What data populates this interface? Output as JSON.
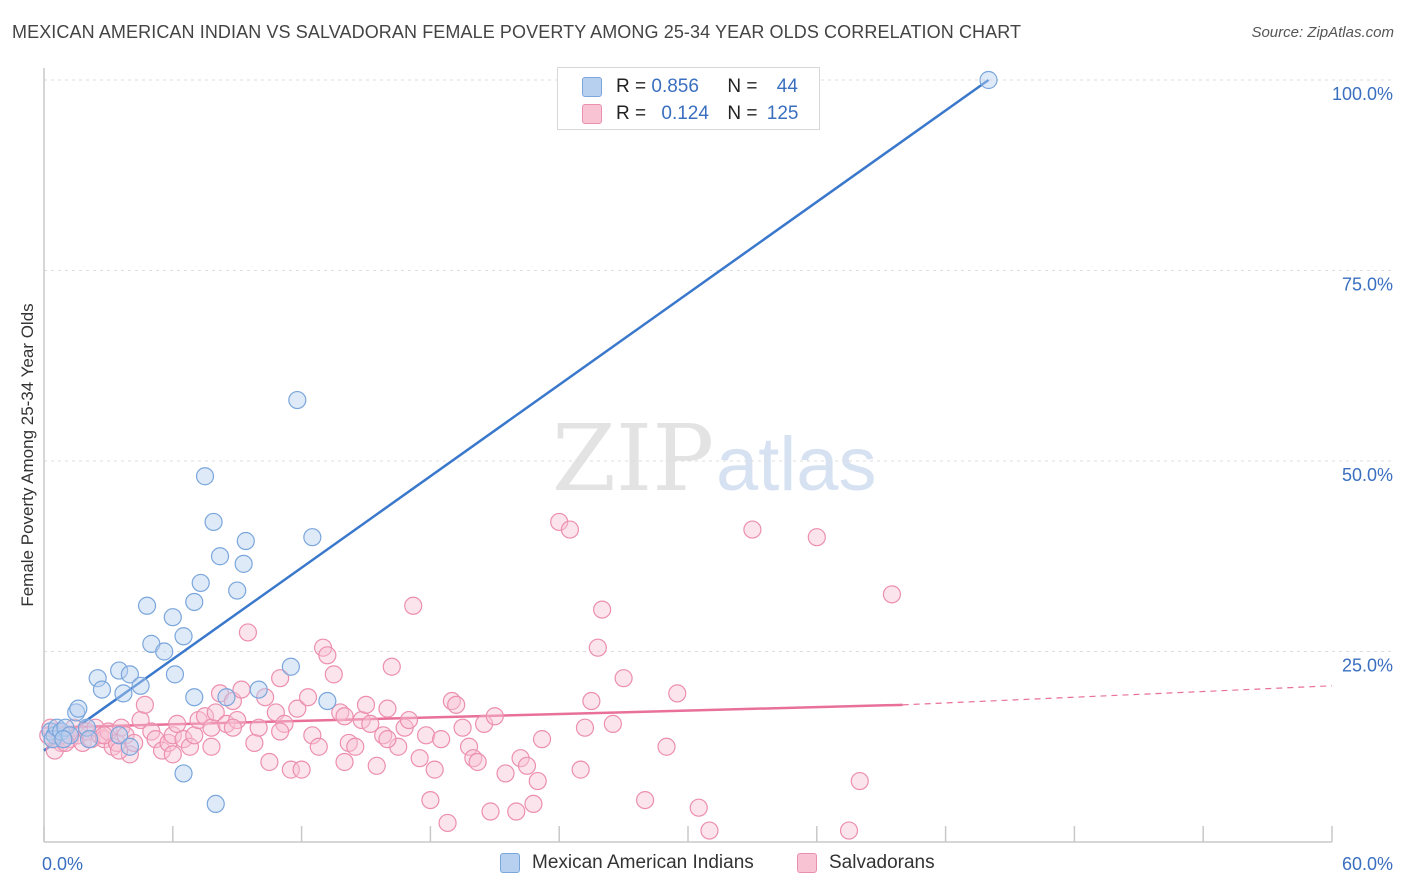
{
  "title": "MEXICAN AMERICAN INDIAN VS SALVADORAN FEMALE POVERTY AMONG 25-34 YEAR OLDS CORRELATION CHART",
  "source": "Source: ZipAtlas.com",
  "watermark": {
    "zip": "ZIP",
    "atlas": "atlas"
  },
  "legend": {
    "rows": [
      {
        "r_label": "R = ",
        "r_value": "0.856",
        "n_label": "N = ",
        "n_value": "44"
      },
      {
        "r_label": "R = ",
        "r_value": "0.124",
        "n_label": "N = ",
        "n_value": "125"
      }
    ]
  },
  "colors": {
    "blue_fill": "#b8d0f0",
    "blue_stroke": "#7aa6dc",
    "blue_line": "#3a78cc",
    "pink_fill": "#f8c4d4",
    "pink_stroke": "#ec8fae",
    "pink_line": "#e8709a",
    "tick_label": "#3a6fc0",
    "grid": "#dddddd"
  },
  "chart_data": {
    "type": "scatter",
    "title": "MEXICAN AMERICAN INDIAN VS SALVADORAN FEMALE POVERTY AMONG 25-34 YEAR OLDS CORRELATION CHART",
    "xlabel": "",
    "ylabel": "Female Poverty Among 25-34 Year Olds",
    "xlim": [
      0,
      60
    ],
    "ylim": [
      0,
      100
    ],
    "x_tick_labels": [
      "0.0%",
      "60.0%"
    ],
    "y_ticks": [
      25,
      50,
      75,
      100
    ],
    "y_tick_labels": [
      "25.0%",
      "50.0%",
      "75.0%",
      "100.0%"
    ],
    "grid": true,
    "legend_position": "top-center",
    "series": [
      {
        "name": "Mexican American Indians",
        "color": "#7aa6dc",
        "r": 0.856,
        "n": 44,
        "trend": {
          "x": [
            0,
            44.0
          ],
          "y": [
            12.0,
            100.0
          ]
        },
        "points": [
          [
            0.3,
            14.5
          ],
          [
            0.5,
            14.0
          ],
          [
            0.4,
            13.5
          ],
          [
            0.6,
            15.0
          ],
          [
            0.8,
            14.5
          ],
          [
            1.0,
            15.0
          ],
          [
            1.2,
            14.0
          ],
          [
            0.9,
            13.5
          ],
          [
            1.5,
            17.0
          ],
          [
            1.6,
            17.5
          ],
          [
            2.0,
            15.0
          ],
          [
            2.1,
            13.5
          ],
          [
            2.5,
            21.5
          ],
          [
            2.7,
            20.0
          ],
          [
            3.5,
            22.5
          ],
          [
            3.7,
            19.5
          ],
          [
            4.0,
            22.0
          ],
          [
            4.5,
            20.5
          ],
          [
            3.5,
            14.0
          ],
          [
            4.0,
            12.5
          ],
          [
            4.8,
            31.0
          ],
          [
            5.0,
            26.0
          ],
          [
            5.6,
            25.0
          ],
          [
            6.0,
            29.5
          ],
          [
            6.1,
            22.0
          ],
          [
            6.5,
            27.0
          ],
          [
            7.0,
            31.5
          ],
          [
            7.3,
            34.0
          ],
          [
            7.5,
            48.0
          ],
          [
            7.9,
            42.0
          ],
          [
            8.2,
            37.5
          ],
          [
            8.5,
            19.0
          ],
          [
            9.0,
            33.0
          ],
          [
            9.3,
            36.5
          ],
          [
            9.4,
            39.5
          ],
          [
            10.0,
            20.0
          ],
          [
            11.5,
            23.0
          ],
          [
            11.8,
            58.0
          ],
          [
            12.5,
            40.0
          ],
          [
            13.2,
            18.5
          ],
          [
            6.5,
            9.0
          ],
          [
            7.0,
            19.0
          ],
          [
            8.0,
            5.0
          ],
          [
            44.0,
            100.0
          ]
        ]
      },
      {
        "name": "Salvadorans",
        "color": "#ec8fae",
        "r": 0.124,
        "n": 125,
        "trend": {
          "x": [
            0,
            40.0
          ],
          "y": [
            15.0,
            18.0
          ]
        },
        "trend_dashed": {
          "x": [
            40.0,
            60.0
          ],
          "y": [
            18.0,
            20.5
          ]
        },
        "points": [
          [
            0.2,
            14.0
          ],
          [
            0.4,
            13.5
          ],
          [
            0.6,
            14.5
          ],
          [
            0.8,
            13.0
          ],
          [
            1.0,
            14.0
          ],
          [
            1.2,
            13.5
          ],
          [
            1.4,
            15.0
          ],
          [
            1.6,
            14.0
          ],
          [
            1.8,
            13.0
          ],
          [
            2.0,
            14.5
          ],
          [
            2.2,
            13.5
          ],
          [
            2.4,
            15.0
          ],
          [
            2.6,
            14.0
          ],
          [
            2.8,
            13.5
          ],
          [
            3.0,
            14.5
          ],
          [
            3.2,
            12.5
          ],
          [
            3.4,
            13.0
          ],
          [
            3.6,
            15.0
          ],
          [
            3.8,
            14.0
          ],
          [
            4.0,
            11.5
          ],
          [
            4.2,
            13.0
          ],
          [
            4.5,
            16.0
          ],
          [
            4.7,
            18.0
          ],
          [
            5.0,
            14.5
          ],
          [
            5.2,
            13.5
          ],
          [
            5.5,
            12.0
          ],
          [
            5.8,
            13.0
          ],
          [
            6.0,
            14.0
          ],
          [
            6.2,
            15.5
          ],
          [
            6.5,
            13.5
          ],
          [
            6.8,
            12.5
          ],
          [
            7.0,
            14.0
          ],
          [
            7.2,
            16.0
          ],
          [
            7.5,
            16.5
          ],
          [
            7.8,
            15.0
          ],
          [
            8.0,
            17.0
          ],
          [
            8.2,
            19.5
          ],
          [
            8.5,
            15.5
          ],
          [
            8.8,
            18.5
          ],
          [
            9.0,
            16.0
          ],
          [
            9.2,
            20.0
          ],
          [
            9.5,
            27.5
          ],
          [
            9.8,
            13.0
          ],
          [
            10.0,
            15.0
          ],
          [
            10.3,
            19.0
          ],
          [
            10.5,
            10.5
          ],
          [
            10.8,
            17.0
          ],
          [
            11.0,
            21.5
          ],
          [
            11.2,
            15.5
          ],
          [
            11.5,
            9.5
          ],
          [
            11.8,
            17.5
          ],
          [
            12.0,
            9.5
          ],
          [
            12.3,
            19.0
          ],
          [
            12.5,
            14.0
          ],
          [
            12.8,
            12.5
          ],
          [
            13.0,
            25.5
          ],
          [
            13.2,
            24.5
          ],
          [
            13.5,
            22.0
          ],
          [
            13.8,
            17.0
          ],
          [
            14.0,
            10.5
          ],
          [
            14.2,
            13.0
          ],
          [
            14.5,
            12.5
          ],
          [
            14.8,
            16.0
          ],
          [
            15.0,
            18.0
          ],
          [
            15.2,
            15.5
          ],
          [
            15.5,
            10.0
          ],
          [
            15.8,
            14.0
          ],
          [
            16.0,
            17.5
          ],
          [
            16.2,
            23.0
          ],
          [
            16.5,
            12.5
          ],
          [
            16.8,
            15.0
          ],
          [
            17.0,
            16.0
          ],
          [
            17.2,
            31.0
          ],
          [
            17.5,
            11.0
          ],
          [
            17.8,
            14.0
          ],
          [
            18.0,
            5.5
          ],
          [
            18.2,
            9.5
          ],
          [
            18.5,
            13.5
          ],
          [
            18.8,
            2.5
          ],
          [
            19.0,
            18.5
          ],
          [
            19.2,
            18.0
          ],
          [
            19.5,
            15.0
          ],
          [
            19.8,
            12.5
          ],
          [
            20.0,
            11.0
          ],
          [
            20.2,
            10.5
          ],
          [
            20.5,
            15.5
          ],
          [
            20.8,
            4.0
          ],
          [
            21.0,
            16.5
          ],
          [
            21.5,
            9.0
          ],
          [
            22.0,
            4.0
          ],
          [
            22.2,
            11.0
          ],
          [
            22.5,
            10.0
          ],
          [
            22.8,
            5.0
          ],
          [
            23.0,
            8.0
          ],
          [
            23.2,
            13.5
          ],
          [
            24.0,
            42.0
          ],
          [
            24.5,
            41.0
          ],
          [
            25.0,
            9.5
          ],
          [
            25.2,
            15.0
          ],
          [
            25.5,
            18.5
          ],
          [
            25.8,
            25.5
          ],
          [
            26.0,
            30.5
          ],
          [
            26.5,
            15.5
          ],
          [
            27.0,
            21.5
          ],
          [
            28.0,
            5.5
          ],
          [
            29.0,
            12.5
          ],
          [
            29.5,
            19.5
          ],
          [
            30.5,
            4.5
          ],
          [
            31.0,
            1.5
          ],
          [
            33.0,
            41.0
          ],
          [
            36.0,
            40.0
          ],
          [
            38.0,
            8.0
          ],
          [
            39.5,
            32.5
          ],
          [
            37.5,
            1.5
          ],
          [
            0.5,
            12.0
          ],
          [
            0.3,
            15.0
          ],
          [
            1.0,
            13.0
          ],
          [
            2.8,
            14.0
          ],
          [
            3.5,
            12.0
          ],
          [
            6.0,
            11.5
          ],
          [
            7.8,
            12.5
          ],
          [
            8.8,
            15.0
          ],
          [
            11.0,
            14.5
          ],
          [
            14.0,
            16.5
          ],
          [
            16.0,
            13.5
          ]
        ]
      }
    ]
  }
}
